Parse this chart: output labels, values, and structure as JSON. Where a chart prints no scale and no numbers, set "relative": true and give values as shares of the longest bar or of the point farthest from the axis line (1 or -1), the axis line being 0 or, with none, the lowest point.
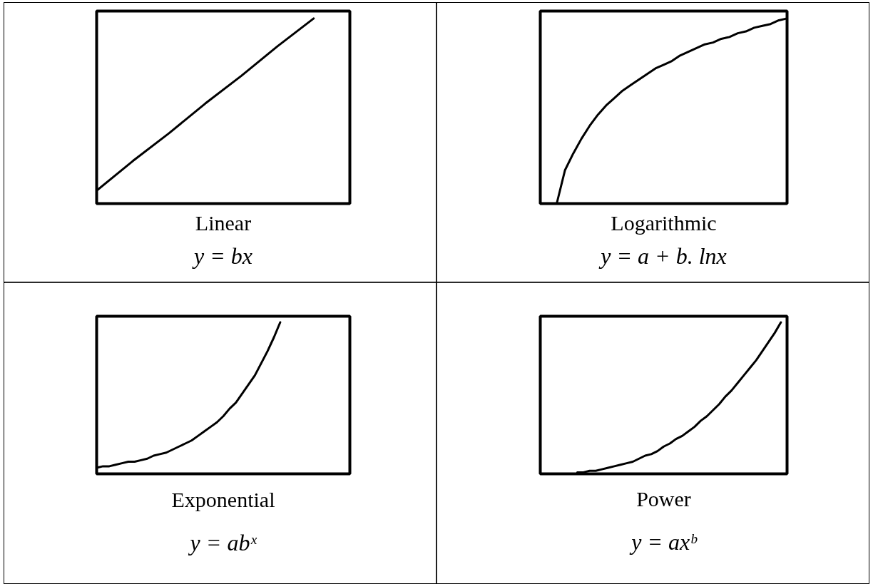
{
  "chart_data": [
    {
      "type": "line",
      "title": "Linear",
      "subtitle": "y = bx",
      "relative": true,
      "categories": [
        null,
        null,
        null,
        null,
        null,
        null,
        null,
        null
      ],
      "series": [
        {
          "color": "#000000",
          "values": [
            0.07,
            0.23,
            0.38,
            0.54,
            0.69,
            0.85,
            1,
            null
          ]
        }
      ]
    },
    {
      "type": "line",
      "title": "Logarithmic",
      "subtitle": "y = a + b. lnx",
      "relative": true,
      "categories": [
        null,
        null,
        null,
        null,
        null,
        null,
        null,
        null,
        null,
        null,
        null,
        null,
        null,
        null,
        null,
        null,
        null,
        null,
        null,
        null,
        null,
        null,
        null,
        null,
        null,
        null,
        null,
        null,
        null,
        null,
        null
      ],
      "series": [
        {
          "color": "#000000",
          "values": [
            null,
            null,
            0,
            0.18,
            0.27,
            0.35,
            0.42,
            0.48,
            0.53,
            0.57,
            0.61,
            0.64,
            0.67,
            0.7,
            0.73,
            0.75,
            0.77,
            0.8,
            0.82,
            0.84,
            0.86,
            0.87,
            0.89,
            0.9,
            0.92,
            0.93,
            0.95,
            0.96,
            0.97,
            0.99,
            1
          ]
        }
      ]
    },
    {
      "type": "line",
      "title": "Exponential",
      "subtitle": "y = abˣ",
      "relative": true,
      "categories": [
        null,
        null,
        null,
        null,
        null,
        null,
        null,
        null,
        null,
        null,
        null,
        null,
        null,
        null,
        null,
        null,
        null,
        null,
        null,
        null,
        null,
        null,
        null,
        null,
        null,
        null,
        null,
        null,
        null,
        null,
        null,
        null,
        null,
        null,
        null,
        null,
        null,
        null,
        null,
        null,
        null
      ],
      "series": [
        {
          "color": "#000000",
          "values": [
            0.04,
            0.05,
            0.05,
            0.06,
            0.07,
            0.08,
            0.08,
            0.09,
            0.1,
            0.12,
            0.13,
            0.14,
            0.16,
            0.18,
            0.2,
            0.22,
            0.25,
            0.28,
            0.31,
            0.34,
            0.38,
            0.43,
            0.47,
            0.53,
            0.59,
            0.65,
            0.73,
            0.81,
            0.9,
            1,
            null,
            null,
            null,
            null,
            null,
            null,
            null,
            null,
            null,
            null,
            null
          ]
        }
      ]
    },
    {
      "type": "line",
      "title": "Power",
      "subtitle": "y = axᵇ",
      "relative": true,
      "categories": [
        null,
        null,
        null,
        null,
        null,
        null,
        null,
        null,
        null,
        null,
        null,
        null,
        null,
        null,
        null,
        null,
        null,
        null,
        null,
        null,
        null,
        null,
        null,
        null,
        null,
        null,
        null,
        null,
        null,
        null,
        null,
        null,
        null,
        null,
        null,
        null,
        null,
        null,
        null,
        null,
        null
      ],
      "series": [
        {
          "color": "#000000",
          "values": [
            null,
            null,
            null,
            null,
            null,
            null,
            0.01,
            0.01,
            0.02,
            0.02,
            0.03,
            0.04,
            0.05,
            0.06,
            0.07,
            0.08,
            0.1,
            0.12,
            0.13,
            0.15,
            0.18,
            0.2,
            0.23,
            0.25,
            0.28,
            0.31,
            0.35,
            0.38,
            0.42,
            0.46,
            0.51,
            0.55,
            0.6,
            0.65,
            0.7,
            0.75,
            0.81,
            0.87,
            0.93,
            1,
            null
          ]
        }
      ]
    }
  ]
}
